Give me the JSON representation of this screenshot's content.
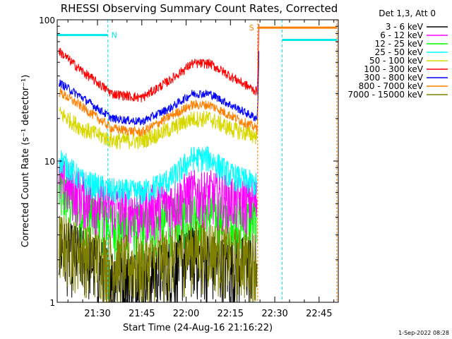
{
  "chart_data": {
    "type": "line",
    "title": "RHESSI Observing Summary Count Rates, Corrected",
    "xlabel": "Start Time (24-Aug-16 21:16:22)",
    "ylabel": "Corrected Count Rate (s⁻¹ detector⁻¹)",
    "y_scale": "log",
    "ylim": [
      1,
      100
    ],
    "y_ticks": [
      {
        "value": 1,
        "label": "1"
      },
      {
        "value": 10,
        "label": "10"
      },
      {
        "value": 100,
        "label": "100"
      }
    ],
    "x_range_minutes": [
      16.37,
      111.5
    ],
    "x_ticks": [
      {
        "label": "21:30",
        "minute": 30
      },
      {
        "label": "21:45",
        "minute": 45
      },
      {
        "label": "22:00",
        "minute": 60
      },
      {
        "label": "22:15",
        "minute": 75
      },
      {
        "label": "22:30",
        "minute": 90
      },
      {
        "label": "22:45",
        "minute": 105
      }
    ],
    "x_minute_offset_hour": "21:00",
    "legend_header": "Det 1,3, Att 0",
    "legend_placement": "right",
    "series": [
      {
        "name": "3 - 6 keV",
        "color": "#000000",
        "values": [
          [
            17,
            2.5
          ],
          [
            25,
            2.2
          ],
          [
            35,
            1.6
          ],
          [
            45,
            1.5
          ],
          [
            55,
            1.8
          ],
          [
            62,
            2.2
          ],
          [
            68,
            2.0
          ],
          [
            75,
            1.8
          ],
          [
            84,
            2.0
          ]
        ]
      },
      {
        "name": "6 - 12 keV",
        "color": "#ff00ff",
        "values": [
          [
            17,
            7.5
          ],
          [
            25,
            5.8
          ],
          [
            35,
            4.8
          ],
          [
            45,
            4.5
          ],
          [
            55,
            5.2
          ],
          [
            62,
            6.0
          ],
          [
            68,
            6.0
          ],
          [
            75,
            5.5
          ],
          [
            84,
            5.3
          ]
        ]
      },
      {
        "name": "12 - 25 keV",
        "color": "#00ff00",
        "values": [
          [
            17,
            6.0
          ],
          [
            25,
            4.5
          ],
          [
            35,
            3.6
          ],
          [
            45,
            3.4
          ],
          [
            55,
            3.8
          ],
          [
            62,
            4.4
          ],
          [
            68,
            4.3
          ],
          [
            75,
            3.9
          ],
          [
            84,
            3.8
          ]
        ]
      },
      {
        "name": "25 - 50 keV",
        "color": "#00ffff",
        "values": [
          [
            17,
            10.5
          ],
          [
            25,
            7.2
          ],
          [
            35,
            6.2
          ],
          [
            45,
            6.0
          ],
          [
            55,
            7.5
          ],
          [
            62,
            10.5
          ],
          [
            68,
            10.5
          ],
          [
            75,
            8.0
          ],
          [
            84,
            6.8
          ]
        ]
      },
      {
        "name": "50 - 100 keV",
        "color": "#d8d800",
        "values": [
          [
            17,
            22
          ],
          [
            25,
            17
          ],
          [
            35,
            14
          ],
          [
            45,
            14
          ],
          [
            55,
            17
          ],
          [
            62,
            20
          ],
          [
            68,
            20
          ],
          [
            75,
            17
          ],
          [
            84,
            15
          ]
        ]
      },
      {
        "name": "100 - 300 keV",
        "color": "#ff0000",
        "values": [
          [
            17,
            60
          ],
          [
            25,
            43
          ],
          [
            35,
            30
          ],
          [
            45,
            28
          ],
          [
            55,
            38
          ],
          [
            62,
            49
          ],
          [
            68,
            49
          ],
          [
            75,
            40
          ],
          [
            84,
            31
          ]
        ]
      },
      {
        "name": "300 - 800 keV",
        "color": "#0000ff",
        "values": [
          [
            17,
            36
          ],
          [
            25,
            28
          ],
          [
            35,
            20
          ],
          [
            45,
            19
          ],
          [
            55,
            24
          ],
          [
            62,
            30
          ],
          [
            68,
            30
          ],
          [
            75,
            25
          ],
          [
            84,
            20
          ]
        ]
      },
      {
        "name": "800 - 7000 keV",
        "color": "#ff8000",
        "values": [
          [
            17,
            31
          ],
          [
            25,
            24
          ],
          [
            35,
            17
          ],
          [
            45,
            16
          ],
          [
            55,
            21
          ],
          [
            62,
            25
          ],
          [
            68,
            25
          ],
          [
            75,
            21
          ],
          [
            84,
            17
          ]
        ]
      },
      {
        "name": "7000 - 15000 keV",
        "color": "#808000",
        "values": [
          [
            17,
            2.8
          ],
          [
            25,
            2.4
          ],
          [
            35,
            2.0
          ],
          [
            45,
            1.9
          ],
          [
            55,
            2.2
          ],
          [
            62,
            2.5
          ],
          [
            68,
            2.5
          ],
          [
            75,
            2.2
          ],
          [
            84,
            2.1
          ]
        ]
      }
    ],
    "flag_annotations": [
      {
        "label": "N",
        "color": "#00e8e8",
        "start_minute": 16.4,
        "end_minute": 33.5,
        "level": 78
      },
      {
        "label": "S",
        "color": "#ff8000",
        "start_minute": 84.2,
        "end_minute": 111,
        "level": 88
      },
      {
        "label": "",
        "color": "#00e8e8",
        "start_minute": 92.5,
        "end_minute": 111,
        "level": 72
      }
    ],
    "vertical_marker_minutes": [
      {
        "minute": 33.5,
        "color": "#00e8e8"
      },
      {
        "minute": 84.2,
        "color": "#ff8000"
      },
      {
        "minute": 92.5,
        "color": "#00e8e8"
      },
      {
        "minute": 111,
        "color": "#ff8000"
      }
    ],
    "grid": false
  },
  "timestamp": "1-Sep-2022 08:28"
}
